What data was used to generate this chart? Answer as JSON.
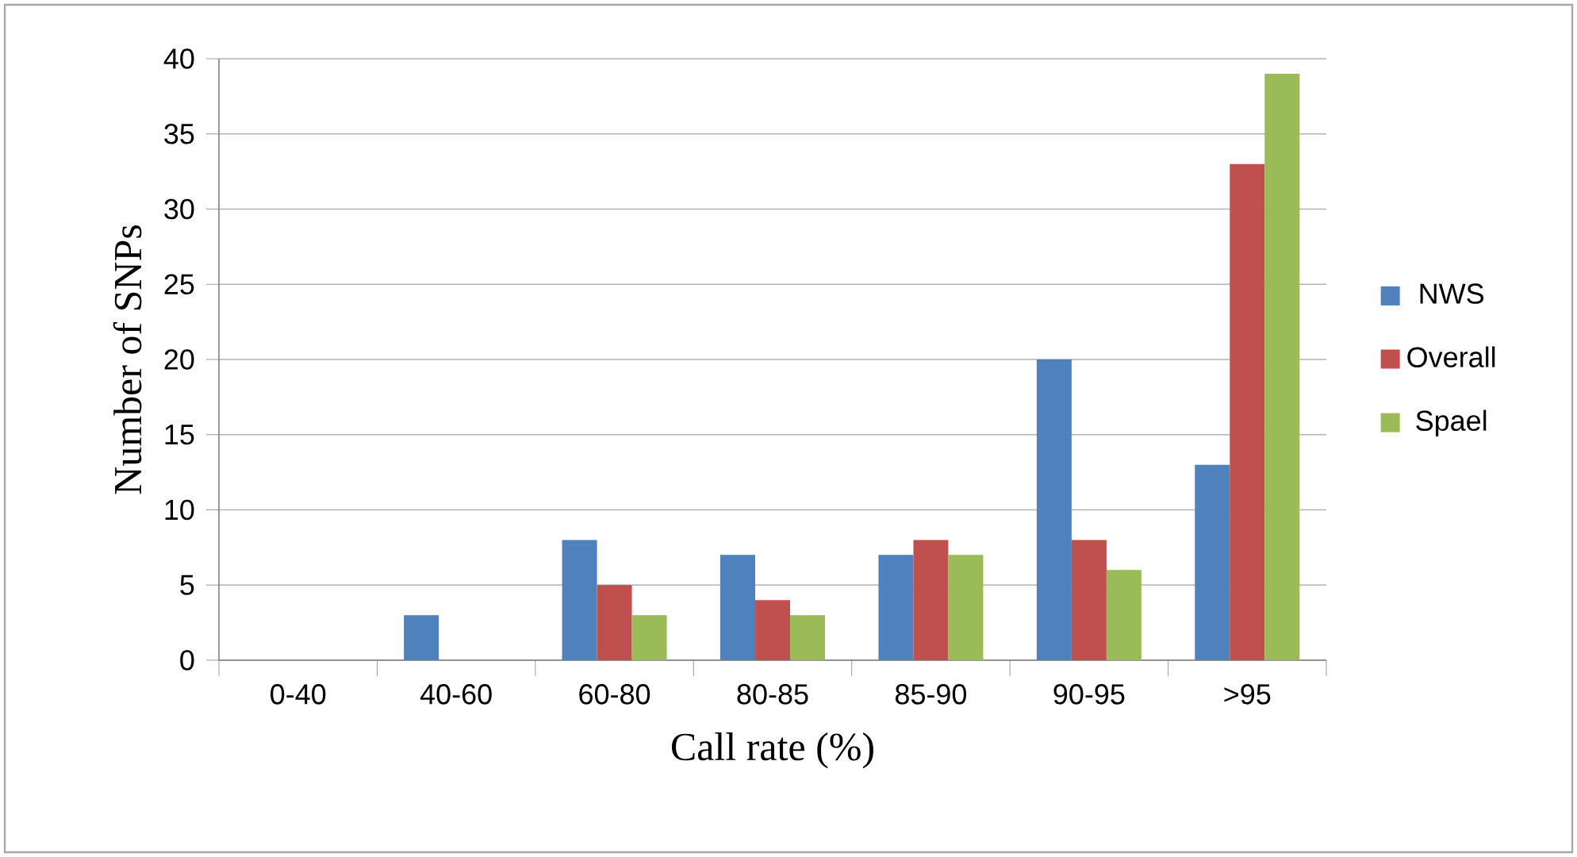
{
  "chart_data": {
    "type": "bar",
    "xlabel": "Call rate (%)",
    "ylabel": "Number of SNPs",
    "categories": [
      "0-40",
      "40-60",
      "60-80",
      "80-85",
      "85-90",
      "90-95",
      ">95"
    ],
    "series": [
      {
        "name": "NWS",
        "color": "#4f81bd",
        "values": [
          0,
          3,
          8,
          7,
          7,
          20,
          13
        ]
      },
      {
        "name": "Overall",
        "color": "#c0504d",
        "values": [
          0,
          0,
          5,
          4,
          8,
          8,
          33
        ]
      },
      {
        "name": "Spael",
        "color": "#9bbb59",
        "values": [
          0,
          0,
          3,
          3,
          7,
          6,
          39
        ]
      }
    ],
    "ylim": [
      0,
      40
    ],
    "yticks": [
      0,
      5,
      10,
      15,
      20,
      25,
      30,
      35,
      40
    ],
    "grid": "y",
    "legend": "right"
  }
}
